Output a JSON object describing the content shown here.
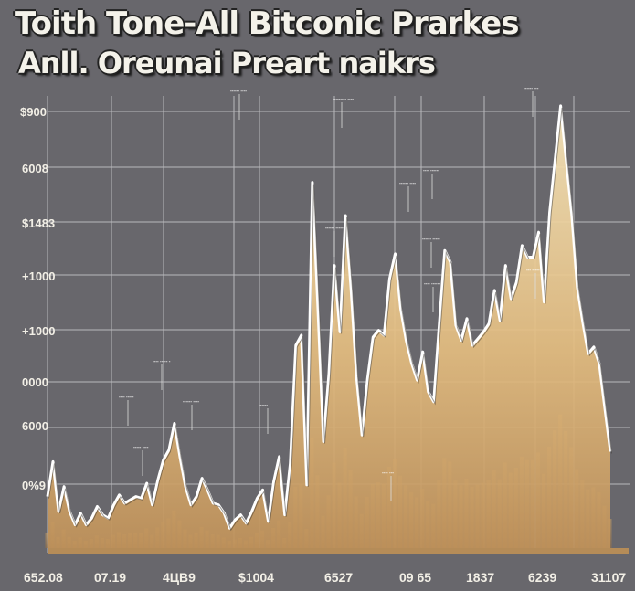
{
  "title_line1": "Toith Tone-All Bitconic Prarkes",
  "title_line2": "Anll. Oreunai Preart naikrs",
  "chart_data": {
    "type": "area",
    "title": "Toith Tone-All Bitconic Prarkes",
    "subtitle": "Anll. Oreunai Preart naikrs",
    "y_ticks": [
      "$900",
      "6008",
      "$1483",
      "+1000",
      "+1000",
      "0000",
      "6000",
      "0%9"
    ],
    "x_ticks": [
      "652.08",
      "07.19",
      "4ЦB9",
      "$1004",
      "6527",
      "09 65",
      "1837",
      "6239",
      "31107"
    ],
    "grid": true,
    "colors": {
      "background": "#68676c",
      "fill_light": "#f6e2b0",
      "fill_dark": "#c7985a",
      "outline": "#ffffff"
    },
    "series": [
      {
        "values": [
          31,
          52,
          22,
          37,
          22,
          14,
          21,
          14,
          18,
          25,
          20,
          18,
          26,
          32,
          27,
          29,
          31,
          30,
          39,
          26,
          41,
          53,
          59,
          75,
          55,
          37,
          26,
          31,
          42,
          35,
          27,
          26,
          21,
          12,
          17,
          20,
          15,
          22,
          30,
          35,
          16,
          40,
          55,
          20,
          51,
          122,
          128,
          38,
          220,
          145,
          64,
          105,
          170,
          130,
          200,
          156,
          103,
          68,
          102,
          127,
          131,
          128,
          162,
          177,
          144,
          125,
          111,
          101,
          118,
          94,
          88,
          135,
          179,
          172,
          134,
          125,
          138,
          122,
          126,
          130,
          135,
          155,
          137,
          170,
          150,
          160,
          182,
          175,
          175,
          190,
          148,
          202,
          234,
          266,
          233,
          201,
          157,
          136,
          117,
          121,
          111,
          84,
          58
        ]
      }
    ],
    "annotations": [
      "------ ----",
      "--------- ----",
      "------ ---",
      "---- ------",
      "------ ----",
      "------ ------",
      "------ -----",
      "--- -----",
      "---- ------",
      "---- ----- -",
      "---- -----",
      "------ ----",
      "------",
      "----- ----",
      "---- ---"
    ]
  }
}
